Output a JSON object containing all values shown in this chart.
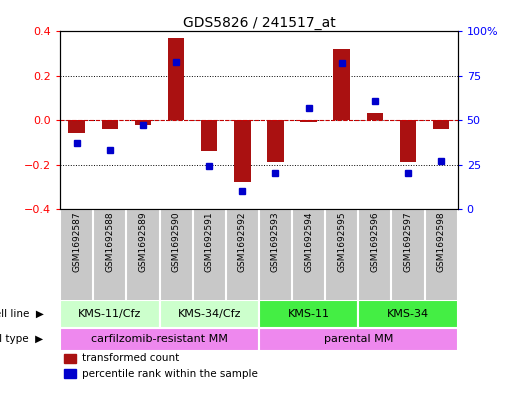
{
  "title": "GDS5826 / 241517_at",
  "samples": [
    "GSM1692587",
    "GSM1692588",
    "GSM1692589",
    "GSM1692590",
    "GSM1692591",
    "GSM1692592",
    "GSM1692593",
    "GSM1692594",
    "GSM1692595",
    "GSM1692596",
    "GSM1692597",
    "GSM1692598"
  ],
  "transformed_count": [
    -0.06,
    -0.04,
    -0.02,
    0.37,
    -0.14,
    -0.28,
    -0.19,
    -0.01,
    0.32,
    0.03,
    -0.19,
    -0.04
  ],
  "percentile_rank": [
    37,
    33,
    47,
    83,
    24,
    10,
    20,
    57,
    82,
    61,
    20,
    27
  ],
  "ylim_left": [
    -0.4,
    0.4
  ],
  "ylim_right": [
    0,
    100
  ],
  "yticks_left": [
    -0.4,
    -0.2,
    0.0,
    0.2,
    0.4
  ],
  "yticks_right": [
    0,
    25,
    50,
    75,
    100
  ],
  "bar_color": "#aa1111",
  "dot_color": "#0000cc",
  "zero_line_color": "#cc0000",
  "sample_bg": "#c8c8c8",
  "cell_line_light_color": "#ccffcc",
  "cell_line_dark_color": "#44ee44",
  "cell_type_color": "#ee88ee",
  "legend_bar_label": "transformed count",
  "legend_dot_label": "percentile rank within the sample",
  "cell_line_label": "cell line",
  "cell_type_label": "cell type",
  "cell_lines": [
    {
      "label": "KMS-11/Cfz",
      "start": 0,
      "end": 3,
      "light": true
    },
    {
      "label": "KMS-34/Cfz",
      "start": 3,
      "end": 6,
      "light": true
    },
    {
      "label": "KMS-11",
      "start": 6,
      "end": 9,
      "light": false
    },
    {
      "label": "KMS-34",
      "start": 9,
      "end": 12,
      "light": false
    }
  ],
  "cell_types": [
    {
      "label": "carfilzomib-resistant MM",
      "start": 0,
      "end": 6
    },
    {
      "label": "parental MM",
      "start": 6,
      "end": 12
    }
  ]
}
